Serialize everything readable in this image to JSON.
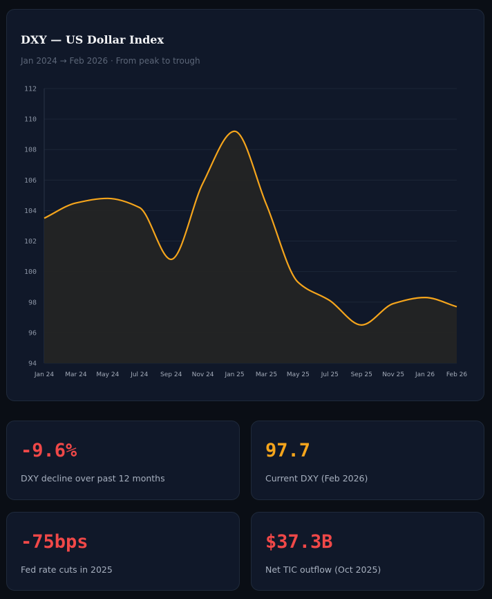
{
  "chart_data": {
    "type": "area",
    "title": "DXY — US Dollar Index",
    "subtitle": "Jan 2024 → Feb 2026 · From peak to trough",
    "xlabel": "",
    "ylabel": "",
    "ylim": [
      94,
      112
    ],
    "yticks": [
      94,
      96,
      98,
      100,
      102,
      104,
      106,
      108,
      110,
      112
    ],
    "xtick_labels": [
      "Jan 24",
      "Mar 24",
      "May 24",
      "Jul 24",
      "Sep 24",
      "Nov 24",
      "Jan 25",
      "Mar 25",
      "May 25",
      "Jul 25",
      "Sep 25",
      "Nov 25",
      "Jan 26",
      "Feb 26"
    ],
    "categories": [
      "Jan 24",
      "Mar 24",
      "May 24",
      "Jul 24",
      "Sep 24",
      "Nov 24",
      "Jan 25",
      "Mar 25",
      "May 25",
      "Jul 25",
      "Sep 25",
      "Nov 25",
      "Jan 26",
      "Feb 26"
    ],
    "values": [
      103.5,
      104.5,
      104.8,
      104.2,
      100.8,
      105.8,
      109.2,
      104.4,
      99.3,
      98.1,
      96.5,
      97.9,
      98.3,
      97.7
    ],
    "grid": true,
    "legend": "none",
    "colors": {
      "line": "#f5a51c",
      "fill": "#242424"
    }
  },
  "stats": [
    {
      "value": "-9.6%",
      "label": "DXY decline over past 12 months",
      "color": "#f04848"
    },
    {
      "value": "97.7",
      "label": "Current DXY (Feb 2026)",
      "color": "#f5a51c"
    },
    {
      "value": "-75bps",
      "label": "Fed rate cuts in 2025",
      "color": "#f04848"
    },
    {
      "value": "$37.3B",
      "label": "Net TIC outflow (Oct 2025)",
      "color": "#f04848"
    }
  ]
}
